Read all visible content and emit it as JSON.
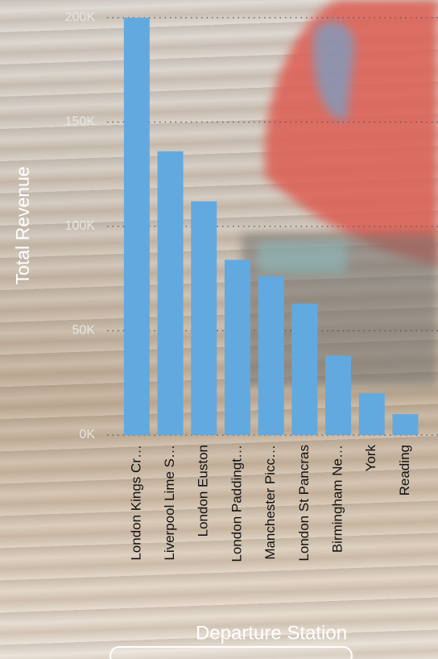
{
  "chart_data": {
    "type": "bar",
    "x_label": "Departure Station",
    "y_label": "Total Revenue",
    "categories": [
      "London Kings Cr…",
      "Liverpool Lime S…",
      "London Euston",
      "London Paddingt…",
      "Manchester Picc…",
      "London St Pancras",
      "Birmingham Ne…",
      "York",
      "Reading"
    ],
    "values": [
      200000,
      136000,
      112000,
      84000,
      76000,
      63000,
      38000,
      20000,
      10000
    ],
    "color": "#62a9e0",
    "ylim": [
      0,
      200000
    ],
    "yticks": [
      {
        "value": 0,
        "label": "0K"
      },
      {
        "value": 50000,
        "label": "50K"
      },
      {
        "value": 100000,
        "label": "100K"
      },
      {
        "value": 150000,
        "label": "150K"
      },
      {
        "value": 200000,
        "label": "200K"
      }
    ],
    "grid": true
  }
}
